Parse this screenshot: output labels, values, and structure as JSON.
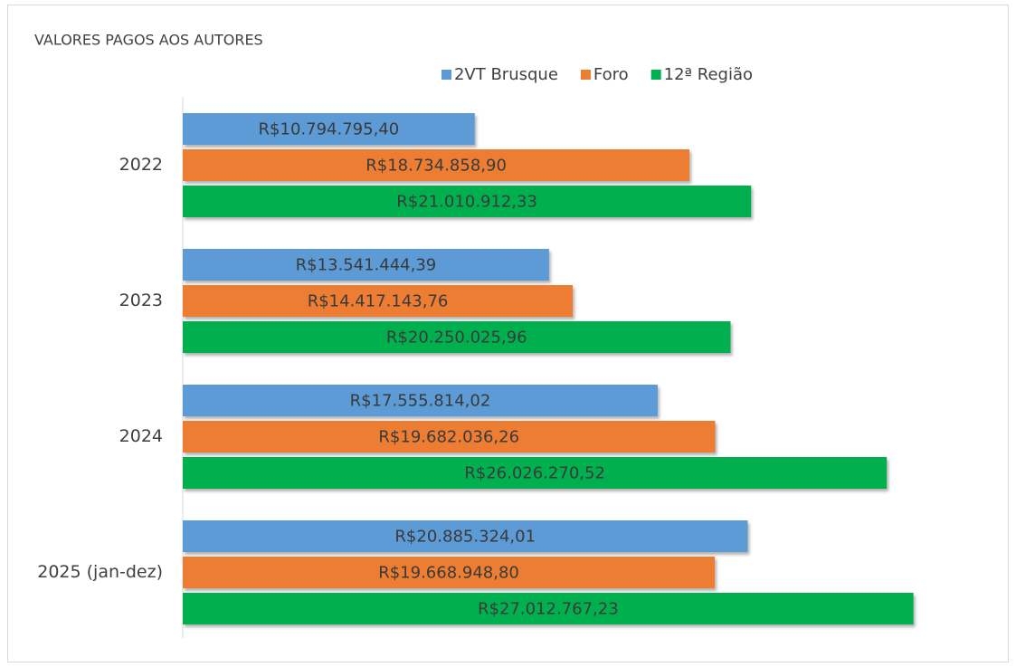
{
  "chart_data": {
    "type": "hbar",
    "title": "VALORES PAGOS AOS AUTORES",
    "categories": [
      "2022",
      "2023",
      "2024",
      "2025 (jan-dez)"
    ],
    "xlim": [
      0,
      30000000
    ],
    "legend": "top",
    "series": [
      {
        "name": "2VT Brusque",
        "color": "#5b9bd5",
        "values": [
          10794795.4,
          13541444.39,
          17555814.02,
          20885324.01
        ],
        "value_labels": [
          "R$10.794.795,40",
          "R$13.541.444,39",
          "R$17.555.814,02",
          "R$20.885.324,01"
        ]
      },
      {
        "name": "Foro",
        "color": "#ed7d31",
        "values": [
          18734858.9,
          14417143.76,
          19682036.26,
          19668948.8
        ],
        "value_labels": [
          "R$18.734.858,90",
          "R$14.417.143,76",
          "R$19.682.036,26",
          "R$19.668.948,80"
        ]
      },
      {
        "name": "12ª Região",
        "color": "#00b050",
        "values": [
          21010912.33,
          20250025.96,
          26026270.52,
          27012767.23
        ],
        "value_labels": [
          "R$21.010.912,33",
          "R$20.250.025,96",
          "R$26.026.270,52",
          "R$27.012.767,23"
        ]
      }
    ]
  }
}
